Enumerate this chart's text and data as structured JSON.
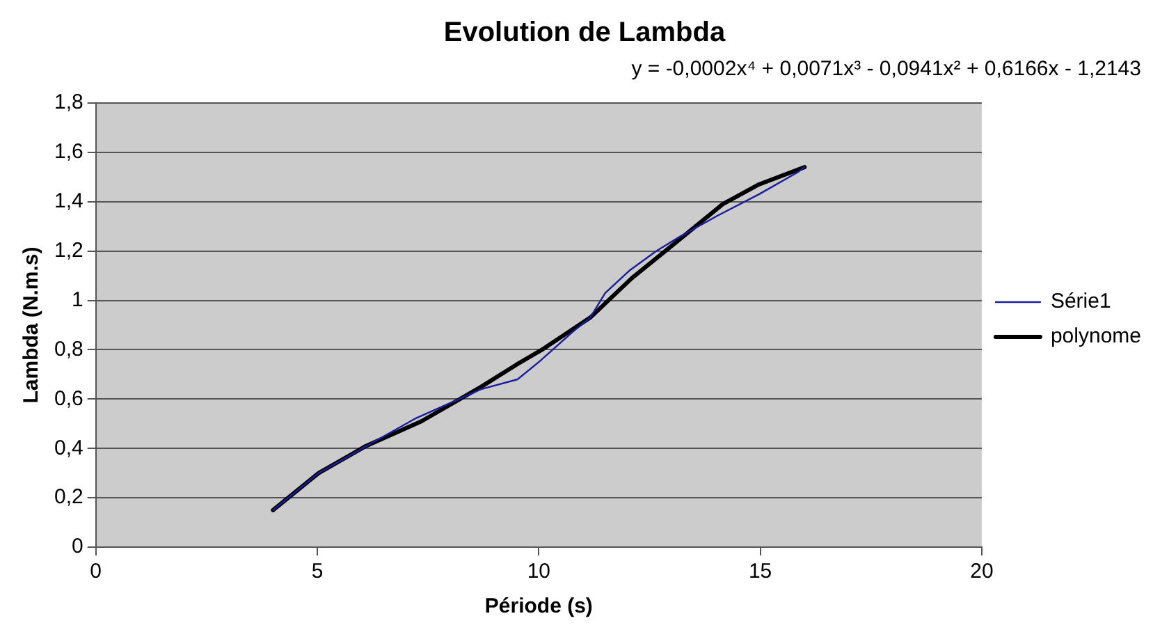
{
  "chart_data": {
    "type": "line",
    "title": "Evolution de Lambda",
    "xlabel": "Période (s)",
    "ylabel": "Lambda (N.m.s)",
    "annotations": [
      "y = -0,0002x⁴ + 0,0071x³ - 0,0941x² + 0,6166x - 1,2143"
    ],
    "xlim": [
      0,
      20
    ],
    "xticks": [
      0,
      5,
      10,
      15,
      20
    ],
    "ylim": [
      0,
      1.8
    ],
    "yticks": [
      0,
      {
        "value": 0.2,
        "label": "0,2"
      },
      {
        "value": 0.4,
        "label": "0,4"
      },
      {
        "value": 0.6,
        "label": "0,6"
      },
      {
        "value": 0.8,
        "label": "0,8"
      },
      1,
      {
        "value": 1.2,
        "label": "1,2"
      },
      {
        "value": 1.4,
        "label": "1,4"
      },
      {
        "value": 1.6,
        "label": "1,6"
      },
      {
        "value": 1.8,
        "label": "1,8"
      }
    ],
    "grid": "y",
    "legend": "right",
    "marker": "none",
    "line_style": "solid",
    "series": [
      {
        "name": "Série1",
        "color": "#1c1c9c",
        "x": [
          4.0,
          5.03,
          7.2,
          8.7,
          9.52,
          10.0,
          10.75,
          11.16,
          11.5,
          12.04,
          12.65,
          13.2,
          14.0,
          14.97,
          15.85,
          16.0
        ],
        "values": [
          0.15,
          0.3,
          0.52,
          0.64,
          0.68,
          0.75,
          0.87,
          0.93,
          1.03,
          1.12,
          1.2,
          1.26,
          1.34,
          1.43,
          1.52,
          1.54
        ]
      },
      {
        "name": "polynome",
        "color": "#000000",
        "x": [
          4.0,
          5.03,
          6.1,
          7.35,
          8.7,
          9.5,
          10.07,
          11.16,
          12.1,
          13.2,
          14.15,
          14.97,
          16.0
        ],
        "values": [
          0.15,
          0.3,
          0.41,
          0.51,
          0.65,
          0.74,
          0.8,
          0.93,
          1.09,
          1.25,
          1.39,
          1.47,
          1.54
        ]
      }
    ]
  }
}
